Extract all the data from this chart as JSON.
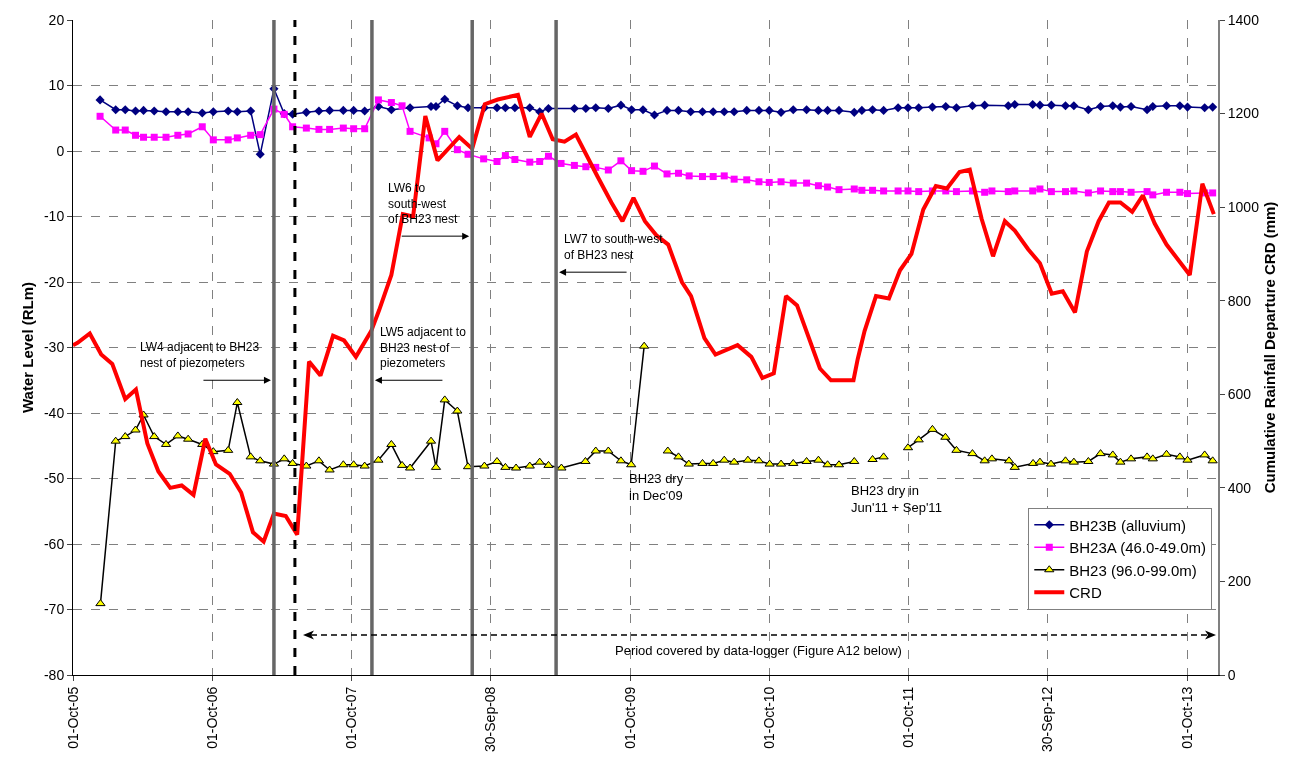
{
  "chart_data": {
    "type": "line",
    "ylabel": "Water Level (RLm)",
    "y2label": "Cumulative Rainfall Departure CRD (mm)",
    "xlim": [
      "2005-10-01",
      "2013-12-21"
    ],
    "xticks": [
      {
        "value": "2005-10-01",
        "label": "01-Oct-05"
      },
      {
        "value": "2006-10-01",
        "label": "01-Oct-06"
      },
      {
        "value": "2007-10-01",
        "label": "01-Oct-07"
      },
      {
        "value": "2008-09-30",
        "label": "30-Sep-08"
      },
      {
        "value": "2009-10-01",
        "label": "01-Oct-09"
      },
      {
        "value": "2010-10-01",
        "label": "01-Oct-10"
      },
      {
        "value": "2011-10-01",
        "label": "01-Oct-11"
      },
      {
        "value": "2012-09-30",
        "label": "30-Sep-12"
      },
      {
        "value": "2013-10-01",
        "label": "01-Oct-13"
      }
    ],
    "ylim": [
      -80,
      20
    ],
    "yticks": [
      -80,
      -70,
      -60,
      -50,
      -40,
      -30,
      -20,
      -10,
      0,
      10,
      20
    ],
    "y2lim": [
      0,
      1400
    ],
    "y2ticks": [
      0,
      200,
      400,
      600,
      800,
      1000,
      1200,
      1400
    ],
    "grid": true,
    "legend": "bottom right",
    "series": [
      {
        "name": "BH23B (alluvium)",
        "color": "#000080",
        "marker": "diamond",
        "x": [
          "2005-12-11",
          "2006-01-21",
          "2006-02-15",
          "2006-03-14",
          "2006-04-04",
          "2006-05-02",
          "2006-06-02",
          "2006-07-03",
          "2006-07-30",
          "2006-09-05",
          "2006-10-04",
          "2006-11-12",
          "2006-12-06",
          "2007-01-10",
          "2007-02-04",
          "2007-03-12",
          "2007-04-08",
          "2007-04-30",
          "2007-06-05",
          "2007-07-08",
          "2007-08-05",
          "2007-09-10",
          "2007-10-07",
          "2007-11-05",
          "2007-12-11",
          "2008-01-14",
          "2008-03-03",
          "2008-04-27",
          "2008-05-10",
          "2008-06-02",
          "2008-07-05",
          "2008-08-02",
          "2008-09-14",
          "2008-10-17",
          "2008-11-08",
          "2008-12-03",
          "2009-01-11",
          "2009-02-06",
          "2009-03-01",
          "2009-05-08",
          "2009-06-07",
          "2009-07-03",
          "2009-08-05",
          "2009-09-07",
          "2009-10-05",
          "2009-11-04",
          "2009-12-04",
          "2010-01-06",
          "2010-02-05",
          "2010-03-09",
          "2010-04-09",
          "2010-05-07",
          "2010-06-05",
          "2010-07-01",
          "2010-08-03",
          "2010-09-04",
          "2010-10-01",
          "2010-11-01",
          "2010-12-03",
          "2011-01-07",
          "2011-02-07",
          "2011-03-03",
          "2011-04-02",
          "2011-05-12",
          "2011-06-01",
          "2011-06-29",
          "2011-07-28",
          "2011-09-04",
          "2011-09-30",
          "2011-10-28",
          "2011-12-03",
          "2012-01-07",
          "2012-02-04",
          "2012-03-17",
          "2012-04-18",
          "2012-06-19",
          "2012-07-06",
          "2012-08-22",
          "2012-09-10",
          "2012-10-10",
          "2012-11-16",
          "2012-12-08",
          "2013-01-15",
          "2013-02-16",
          "2013-03-20",
          "2013-04-09",
          "2013-05-07",
          "2013-06-18",
          "2013-07-03",
          "2013-08-08",
          "2013-09-12",
          "2013-10-02",
          "2013-11-16",
          "2013-12-07"
        ],
        "values": [
          7.8,
          6.3,
          6.3,
          6.1,
          6.2,
          6.1,
          6.0,
          6.0,
          6.0,
          5.8,
          6.0,
          6.1,
          6.0,
          6.1,
          -0.5,
          9.5,
          5.7,
          5.6,
          5.9,
          6.1,
          6.2,
          6.2,
          6.2,
          6.1,
          6.8,
          6.3,
          6.6,
          6.8,
          6.8,
          7.9,
          6.9,
          6.6,
          6.6,
          6.6,
          6.6,
          6.6,
          6.6,
          6.0,
          6.5,
          6.5,
          6.5,
          6.6,
          6.5,
          7.0,
          6.3,
          6.3,
          5.5,
          6.2,
          6.2,
          6.0,
          6.0,
          6.0,
          6.0,
          6.0,
          6.2,
          6.2,
          6.2,
          5.9,
          6.3,
          6.3,
          6.2,
          6.2,
          6.2,
          5.9,
          6.2,
          6.3,
          6.2,
          6.6,
          6.6,
          6.6,
          6.7,
          6.8,
          6.6,
          6.9,
          7.0,
          6.9,
          7.1,
          7.1,
          7.0,
          7.0,
          6.9,
          6.9,
          6.3,
          6.8,
          6.9,
          6.7,
          6.8,
          6.3,
          6.8,
          6.9,
          6.9,
          6.7,
          6.6,
          6.7
        ]
      },
      {
        "name": "BH23A (46.0-49.0m)",
        "color": "#ff00ff",
        "marker": "square",
        "x": [
          "2005-12-11",
          "2006-01-21",
          "2006-02-15",
          "2006-03-14",
          "2006-04-04",
          "2006-05-02",
          "2006-06-02",
          "2006-07-03",
          "2006-07-30",
          "2006-09-05",
          "2006-10-04",
          "2006-11-12",
          "2006-12-06",
          "2007-01-10",
          "2007-02-04",
          "2007-03-12",
          "2007-04-08",
          "2007-04-30",
          "2007-06-05",
          "2007-07-08",
          "2007-08-05",
          "2007-09-10",
          "2007-10-07",
          "2007-11-05",
          "2007-12-11",
          "2008-01-14",
          "2008-02-11",
          "2008-03-03",
          "2008-04-22",
          "2008-05-10",
          "2008-06-02",
          "2008-07-05",
          "2008-08-02",
          "2008-09-12",
          "2008-10-17",
          "2008-11-08",
          "2008-12-03",
          "2009-01-11",
          "2009-02-06",
          "2009-03-01",
          "2009-04-03",
          "2009-05-08",
          "2009-06-07",
          "2009-07-03",
          "2009-08-05",
          "2009-09-07",
          "2009-10-05",
          "2009-11-04",
          "2009-12-04",
          "2010-01-06",
          "2010-02-05",
          "2010-03-05",
          "2010-04-09",
          "2010-05-07",
          "2010-06-05",
          "2010-07-01",
          "2010-08-03",
          "2010-09-04",
          "2010-10-01",
          "2010-11-01",
          "2010-12-03",
          "2011-01-07",
          "2011-02-07",
          "2011-03-03",
          "2011-04-02",
          "2011-05-12",
          "2011-06-01",
          "2011-06-29",
          "2011-07-28",
          "2011-09-04",
          "2011-09-30",
          "2011-10-28",
          "2011-12-03",
          "2012-01-07",
          "2012-02-04",
          "2012-03-17",
          "2012-04-18",
          "2012-05-07",
          "2012-06-19",
          "2012-07-06",
          "2012-08-22",
          "2012-09-10",
          "2012-10-10",
          "2012-11-16",
          "2012-12-08",
          "2013-01-15",
          "2013-02-16",
          "2013-03-20",
          "2013-04-09",
          "2013-05-07",
          "2013-06-18",
          "2013-07-03",
          "2013-08-08",
          "2013-09-12",
          "2013-10-02",
          "2013-11-16",
          "2013-12-07"
        ],
        "values": [
          5.3,
          3.2,
          3.2,
          2.4,
          2.1,
          2.1,
          2.1,
          2.4,
          2.6,
          3.7,
          1.7,
          1.7,
          2.0,
          2.4,
          2.5,
          6.4,
          5.6,
          3.7,
          3.5,
          3.3,
          3.3,
          3.5,
          3.4,
          3.4,
          7.8,
          7.4,
          6.9,
          3.0,
          2.0,
          1.1,
          3.0,
          0.2,
          -0.5,
          -1.2,
          -1.6,
          -0.7,
          -1.3,
          -1.7,
          -1.6,
          -0.8,
          -1.9,
          -2.2,
          -2.4,
          -2.5,
          -2.9,
          -1.5,
          -3.0,
          -3.1,
          -2.3,
          -3.5,
          -3.4,
          -3.8,
          -3.9,
          -3.9,
          -3.8,
          -4.3,
          -4.4,
          -4.7,
          -4.8,
          -4.7,
          -4.9,
          -4.9,
          -5.3,
          -5.5,
          -5.9,
          -5.8,
          -6.0,
          -6.0,
          -6.1,
          -6.1,
          -6.1,
          -6.2,
          -6.1,
          -6.1,
          -6.2,
          -6.1,
          -6.3,
          -6.1,
          -6.2,
          -6.1,
          -6.1,
          -5.8,
          -6.2,
          -6.2,
          -6.1,
          -6.4,
          -6.1,
          -6.2,
          -6.2,
          -6.3,
          -6.2,
          -6.7,
          -6.3,
          -6.3,
          -6.5,
          -6.4,
          -6.4
        ]
      },
      {
        "name": "BH23 (96.0-99.0m)",
        "color": "#000000",
        "marker": "triangle",
        "x": [
          "2005-12-12",
          "2006-01-21",
          "2006-02-15",
          "2006-03-14",
          "2006-04-04",
          "2006-05-02",
          "2006-06-02",
          "2006-07-03",
          "2006-07-30",
          "2006-09-05",
          "2006-10-04",
          "2006-11-12",
          "2006-12-06",
          "2007-01-10",
          "2007-02-04",
          "2007-03-12",
          "2007-04-08",
          "2007-04-30",
          "2007-06-05",
          "2007-07-08",
          "2007-08-05",
          "2007-09-10",
          "2007-10-07",
          "2007-11-05",
          "2007-12-11",
          "2008-01-14",
          "2008-02-11",
          "2008-03-03",
          "2008-04-27",
          "2008-05-10",
          "2008-06-02",
          "2008-07-05",
          "2008-08-02",
          "2008-09-14",
          "2008-10-17",
          "2008-11-08",
          "2008-12-06",
          "2009-01-11",
          "2009-02-06",
          "2009-03-01",
          "2009-04-04",
          "2009-06-06",
          "2009-07-03",
          "2009-08-05",
          "2009-09-07",
          "2009-10-04",
          "2009-11-07",
          "2009-12-07",
          "2010-01-08",
          "2010-02-05",
          "2010-03-04",
          "2010-04-09",
          "2010-05-07",
          "2010-06-05",
          "2010-07-01",
          "2010-08-06",
          "2010-09-04",
          "2010-10-02",
          "2010-11-01",
          "2010-12-03",
          "2011-01-07",
          "2011-02-07",
          "2011-03-03",
          "2011-04-02",
          "2011-05-12",
          "2011-06-05",
          "2011-06-29",
          "2011-07-28",
          "2011-09-01",
          "2011-09-30",
          "2011-10-28",
          "2011-12-03",
          "2012-01-06",
          "2012-02-04",
          "2012-03-17",
          "2012-04-18",
          "2012-05-07",
          "2012-06-21",
          "2012-07-06",
          "2012-08-23",
          "2012-09-10",
          "2012-10-09",
          "2012-11-16",
          "2012-12-08",
          "2013-01-15",
          "2013-02-16",
          "2013-03-20",
          "2013-04-09",
          "2013-05-07",
          "2013-06-18",
          "2013-07-03",
          "2013-08-08",
          "2013-09-12",
          "2013-10-02",
          "2013-11-16",
          "2013-12-07"
        ],
        "values": [
          -69.1,
          -44.3,
          -43.6,
          -42.6,
          -40.3,
          -43.6,
          -44.8,
          -43.5,
          -44.0,
          -44.8,
          -45.9,
          -45.7,
          -38.4,
          -46.7,
          -47.3,
          -47.8,
          -47.0,
          -47.7,
          -48.1,
          -47.3,
          -48.7,
          -47.9,
          -47.9,
          -48.1,
          -47.2,
          -44.8,
          -48.0,
          -48.4,
          -44.3,
          -48.3,
          -38.0,
          -39.7,
          -48.2,
          -48.1,
          -47.4,
          -48.3,
          -48.4,
          -48.1,
          -47.5,
          -48.0,
          -48.4,
          -47.4,
          -45.8,
          -45.8,
          -47.3,
          -47.9,
          -29.8,
          null,
          -45.8,
          -46.7,
          -47.8,
          -47.7,
          -47.7,
          -47.2,
          -47.5,
          -47.2,
          -47.3,
          -47.8,
          -47.8,
          -47.7,
          -47.4,
          -47.2,
          -47.9,
          -47.9,
          -47.4,
          null,
          -47.1,
          -46.7,
          null,
          -45.3,
          -44.1,
          -42.5,
          -43.7,
          -45.7,
          -46.2,
          -47.3,
          -47.0,
          -47.3,
          -48.3,
          -47.7,
          -47.5,
          -47.8,
          -47.3,
          -47.5,
          -47.4,
          -46.2,
          -46.4,
          -47.5,
          -47.0,
          -46.7,
          -47.0,
          -46.3,
          -46.7,
          -47.2,
          -46.4,
          -47.3
        ]
      },
      {
        "name": "CRD",
        "color": "#ff0000",
        "marker": "none",
        "axis": "y2",
        "x": [
          "2005-10-01",
          "2005-10-13",
          "2005-11-14",
          "2005-12-14",
          "2006-01-12",
          "2006-02-15",
          "2006-03-15",
          "2006-04-14",
          "2006-05-13",
          "2006-06-13",
          "2006-07-13",
          "2006-08-13",
          "2006-09-13",
          "2006-10-11",
          "2006-11-16",
          "2006-12-16",
          "2007-01-16",
          "2007-02-13",
          "2007-03-12",
          "2007-04-12",
          "2007-05-12",
          "2007-06-12",
          "2007-07-12",
          "2007-08-14",
          "2007-09-12",
          "2007-10-13",
          "2007-11-22",
          "2007-12-13",
          "2008-01-14",
          "2008-02-13",
          "2008-03-11",
          "2008-04-12",
          "2008-05-14",
          "2008-07-10",
          "2008-08-13",
          "2008-09-15",
          "2008-10-19",
          "2008-12-11",
          "2009-01-11",
          "2009-02-11",
          "2009-03-12",
          "2009-04-12",
          "2009-05-12",
          "2009-07-08",
          "2009-08-13",
          "2009-09-11",
          "2009-10-10",
          "2009-11-09",
          "2009-12-09",
          "2010-01-09",
          "2010-02-14",
          "2010-03-10",
          "2010-04-14",
          "2010-05-13",
          "2010-07-10",
          "2010-08-15",
          "2010-09-13",
          "2010-10-13",
          "2010-11-14",
          "2010-12-13",
          "2011-02-11",
          "2011-03-12",
          "2011-05-10",
          "2011-05-21",
          "2011-06-08",
          "2011-07-08",
          "2011-08-11",
          "2011-09-09",
          "2011-10-09",
          "2011-11-09",
          "2011-12-12",
          "2012-01-10",
          "2012-02-12",
          "2012-03-10",
          "2012-04-10",
          "2012-05-10",
          "2012-06-10",
          "2012-07-06",
          "2012-08-10",
          "2012-09-10",
          "2012-10-11",
          "2012-11-09",
          "2012-12-11",
          "2013-01-11",
          "2013-02-11",
          "2013-03-10",
          "2013-04-09",
          "2013-05-10",
          "2013-06-07",
          "2013-07-08",
          "2013-08-08",
          "2013-10-08",
          "2013-11-10",
          "2013-12-10"
        ],
        "values": [
          705,
          710,
          730,
          685,
          665,
          590,
          610,
          495,
          435,
          400,
          405,
          385,
          505,
          450,
          430,
          390,
          305,
          285,
          345,
          340,
          300,
          670,
          640,
          725,
          715,
          680,
          735,
          780,
          855,
          985,
          980,
          1195,
          1100,
          1150,
          1125,
          1220,
          1230,
          1240,
          1150,
          1200,
          1145,
          1140,
          1155,
          1065,
          1010,
          970,
          1020,
          970,
          940,
          920,
          840,
          810,
          720,
          685,
          705,
          680,
          635,
          645,
          810,
          790,
          655,
          630,
          630,
          675,
          735,
          810,
          805,
          865,
          900,
          995,
          1045,
          1040,
          1075,
          1080,
          975,
          895,
          970,
          950,
          910,
          880,
          815,
          820,
          775,
          905,
          970,
          1010,
          1010,
          990,
          1025,
          965,
          920,
          855,
          1050,
          985
        ]
      }
    ],
    "ref_lines": [
      {
        "axis": "x",
        "value": "2007-03-12",
        "color": "#666666"
      },
      {
        "axis": "x",
        "value": "2007-05-06",
        "color": "#000000",
        "line_style": "dashed"
      },
      {
        "axis": "x",
        "value": "2007-11-24",
        "color": "#666666"
      },
      {
        "axis": "x",
        "value": "2008-08-13",
        "color": "#666666"
      },
      {
        "axis": "x",
        "value": "2009-03-21",
        "color": "#666666"
      }
    ],
    "annotations": [
      {
        "text": "LW4 adjacent to BH23\nnest of piezometers",
        "x": "2007-03-12",
        "y": -35
      },
      {
        "text": "LW5 adjacent to\nBH23 nest of\npiezometers",
        "x": "2007-11-24",
        "y": -35
      },
      {
        "text": "LW6 to\nsouth-west\nof BH23 nest",
        "x": "2008-08-13",
        "y": -13
      },
      {
        "text": "LW7 to south-west\nof BH23 nest",
        "x": "2009-03-21",
        "y": -18.5
      },
      {
        "text": "BH23 dry\nin Dec'09",
        "x": "2009-09-22",
        "y": -48.5
      },
      "BH23 dry in\nJun'11 + Sep'11",
      "Period covered by data-logger (Figure A12 below)"
    ]
  }
}
